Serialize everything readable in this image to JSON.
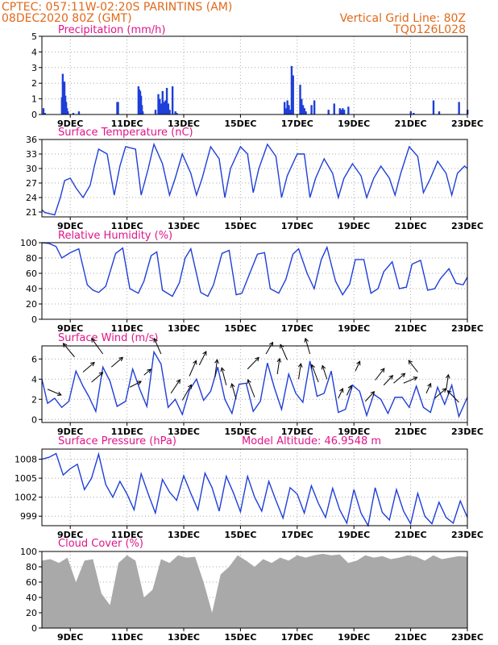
{
  "header": {
    "line1_left": "CPTEC:   057:11W-02:20S   PARINTINS (AM)",
    "line2_left": "08DEC2020 80Z (GMT)",
    "line1_right": "Vertical Grid Line: 80Z",
    "line2_right": "TQ0126L028"
  },
  "colors": {
    "header": "#e06a1c",
    "title": "#e0158a",
    "line": "#1f3fd8",
    "bar": "#1f3fd8",
    "cloud": "#a9a9a9",
    "grid": "#aaaaaa"
  },
  "x_axis": {
    "tick_labels": [
      "9DEC",
      "11DEC",
      "13DEC",
      "15DEC",
      "17DEC",
      "19DEC",
      "21DEC",
      "23DEC"
    ],
    "tick_days": [
      1,
      3,
      5,
      7,
      9,
      11,
      13,
      15
    ],
    "range_days": [
      0,
      15
    ]
  },
  "chart_data": [
    {
      "type": "bar",
      "title": "Precipitation (mm/h)",
      "ylim": [
        0,
        5
      ],
      "yticks": [
        "0",
        "1",
        "2",
        "3",
        "4",
        "5"
      ],
      "grid": true,
      "x": [
        0.05,
        0.1,
        0.7,
        0.73,
        0.76,
        0.79,
        0.82,
        0.85,
        0.88,
        0.91,
        1.1,
        1.3,
        2.65,
        2.68,
        3.4,
        3.43,
        3.46,
        3.49,
        3.52,
        3.55,
        4.0,
        4.1,
        4.15,
        4.2,
        4.25,
        4.3,
        4.35,
        4.4,
        4.45,
        4.5,
        4.6,
        4.7,
        4.75,
        8.55,
        8.6,
        8.65,
        8.7,
        8.75,
        8.8,
        8.85,
        9.1,
        9.15,
        9.2,
        9.25,
        9.3,
        9.5,
        9.6,
        10.1,
        10.3,
        10.5,
        10.55,
        10.6,
        10.65,
        10.8,
        13.0,
        13.1,
        13.8,
        14.0,
        14.7,
        15.0
      ],
      "values": [
        0.4,
        0.1,
        1.1,
        2.6,
        1.5,
        2.1,
        1.2,
        0.8,
        0.4,
        0.2,
        0.1,
        0.2,
        0.8,
        0.8,
        1.8,
        1.6,
        1.5,
        1.2,
        0.6,
        0.2,
        0.3,
        1.3,
        1.0,
        0.7,
        1.5,
        0.8,
        0.9,
        1.7,
        0.7,
        0.3,
        1.8,
        0.2,
        0.1,
        0.8,
        0.4,
        0.9,
        0.6,
        0.3,
        3.1,
        2.5,
        1.9,
        1.0,
        0.6,
        0.4,
        0.2,
        0.6,
        0.9,
        0.3,
        0.7,
        0.4,
        0.3,
        0.4,
        0.3,
        0.5,
        0.2,
        0.1,
        0.9,
        0.2,
        0.8,
        0.3
      ]
    },
    {
      "type": "line",
      "title": "Surface Temperature (nC)",
      "ylim": [
        20,
        36
      ],
      "yticks": [
        "21",
        "24",
        "27",
        "30",
        "33",
        "36"
      ],
      "ytick_values": [
        21,
        24,
        27,
        30,
        33,
        36
      ],
      "grid": true,
      "x": [
        0,
        0.1,
        0.45,
        0.65,
        0.8,
        1.0,
        1.2,
        1.45,
        1.7,
        1.85,
        2.0,
        2.3,
        2.55,
        2.75,
        2.95,
        3.3,
        3.5,
        3.75,
        3.95,
        4.25,
        4.5,
        4.7,
        4.95,
        5.25,
        5.45,
        5.65,
        5.95,
        6.25,
        6.45,
        6.65,
        7.0,
        7.25,
        7.45,
        7.65,
        7.95,
        8.25,
        8.45,
        8.65,
        9.0,
        9.25,
        9.45,
        9.65,
        9.95,
        10.25,
        10.45,
        10.65,
        10.95,
        11.25,
        11.45,
        11.7,
        11.95,
        12.25,
        12.45,
        12.65,
        12.95,
        13.25,
        13.45,
        13.7,
        13.95,
        14.25,
        14.45,
        14.65,
        14.9,
        15.0
      ],
      "values": [
        21.5,
        20.9,
        20.4,
        24.0,
        27.5,
        28.0,
        26.0,
        24.0,
        26.5,
        30.5,
        34.0,
        33.0,
        24.5,
        30.5,
        34.5,
        34.0,
        24.5,
        30.0,
        35.0,
        31.0,
        24.5,
        28.0,
        33.0,
        29.0,
        24.5,
        28.0,
        34.5,
        32.0,
        24.0,
        30.0,
        34.5,
        33.0,
        25.0,
        30.0,
        35.0,
        32.5,
        24.0,
        28.5,
        33.0,
        33.0,
        24.0,
        28.0,
        32.0,
        29.0,
        24.0,
        28.0,
        31.0,
        28.5,
        24.0,
        28.0,
        30.5,
        28.0,
        24.5,
        29.0,
        34.5,
        32.5,
        25.0,
        28.0,
        31.5,
        29.0,
        24.5,
        29.0,
        30.5,
        30.0
      ]
    },
    {
      "type": "line",
      "title": "Relative Humidity (%)",
      "ylim": [
        0,
        100
      ],
      "yticks": [
        "0",
        "20",
        "40",
        "60",
        "80",
        "100"
      ],
      "ytick_values": [
        0,
        20,
        40,
        60,
        80,
        100
      ],
      "grid": true,
      "x": [
        0,
        0.25,
        0.5,
        0.7,
        1.0,
        1.3,
        1.6,
        1.8,
        2.0,
        2.25,
        2.6,
        2.85,
        3.1,
        3.4,
        3.6,
        3.85,
        4.05,
        4.25,
        4.6,
        4.85,
        5.05,
        5.25,
        5.6,
        5.85,
        6.05,
        6.35,
        6.6,
        6.85,
        7.05,
        7.35,
        7.6,
        7.85,
        8.05,
        8.35,
        8.6,
        8.85,
        9.05,
        9.35,
        9.6,
        9.85,
        10.05,
        10.35,
        10.6,
        10.85,
        11.05,
        11.35,
        11.6,
        11.85,
        12.05,
        12.35,
        12.6,
        12.85,
        13.05,
        13.35,
        13.6,
        13.85,
        14.05,
        14.35,
        14.6,
        14.85,
        15.0
      ],
      "values": [
        100,
        99,
        95,
        80,
        87,
        92,
        45,
        38,
        35,
        43,
        86,
        93,
        40,
        34,
        50,
        83,
        88,
        38,
        30,
        48,
        80,
        92,
        35,
        30,
        45,
        86,
        90,
        32,
        34,
        62,
        85,
        87,
        40,
        34,
        52,
        85,
        92,
        60,
        40,
        78,
        94,
        50,
        32,
        46,
        78,
        78,
        34,
        40,
        62,
        75,
        40,
        42,
        72,
        77,
        38,
        40,
        53,
        66,
        47,
        45,
        55
      ]
    },
    {
      "type": "line",
      "title": "Surface Wind (m/s)",
      "ylim": [
        -0.3,
        7.3
      ],
      "yticks": [
        "0",
        "2",
        "4",
        "6"
      ],
      "ytick_values": [
        0,
        2,
        4,
        6
      ],
      "grid": true,
      "x": [
        0,
        0.2,
        0.45,
        0.7,
        0.95,
        1.2,
        1.45,
        1.65,
        1.9,
        2.15,
        2.4,
        2.65,
        2.95,
        3.2,
        3.45,
        3.7,
        3.95,
        4.2,
        4.45,
        4.7,
        4.95,
        5.2,
        5.45,
        5.7,
        5.95,
        6.2,
        6.45,
        6.7,
        6.95,
        7.2,
        7.45,
        7.7,
        7.95,
        8.2,
        8.45,
        8.7,
        8.95,
        9.2,
        9.45,
        9.7,
        9.95,
        10.2,
        10.45,
        10.7,
        10.95,
        11.2,
        11.45,
        11.7,
        11.95,
        12.2,
        12.45,
        12.7,
        12.95,
        13.2,
        13.45,
        13.7,
        13.95,
        14.2,
        14.45,
        14.7,
        15.0
      ],
      "values": [
        4.0,
        1.6,
        2.1,
        1.2,
        1.8,
        4.8,
        3.3,
        2.3,
        0.8,
        5.2,
        3.8,
        1.3,
        1.8,
        5.0,
        3.0,
        1.3,
        6.7,
        5.5,
        1.2,
        2.0,
        0.5,
        2.9,
        4.0,
        1.9,
        2.8,
        5.2,
        2.0,
        0.6,
        3.5,
        3.6,
        0.8,
        1.8,
        5.6,
        3.1,
        1.0,
        4.5,
        2.6,
        1.7,
        5.8,
        2.3,
        2.6,
        4.8,
        0.7,
        1.0,
        3.4,
        2.8,
        0.4,
        2.5,
        2.0,
        0.6,
        2.2,
        2.2,
        1.2,
        3.3,
        1.2,
        0.7,
        3.2,
        1.5,
        3.4,
        0.3,
        2.2
      ],
      "arrow_x": [
        0.2,
        1.15,
        1.45,
        1.75,
        2.15,
        2.45,
        3.1,
        3.6,
        4.2,
        4.55,
        4.95,
        5.2,
        5.55,
        6.1,
        6.5,
        6.85,
        7.25,
        7.5,
        7.9,
        8.3,
        8.65,
        9.05,
        9.45,
        9.75,
        10.05,
        10.45,
        10.75,
        11.05,
        11.4,
        11.75,
        12.05,
        12.4,
        12.75,
        13.25,
        13.55,
        13.85,
        14.25,
        14.7
      ],
      "arrow_dx": [
        0.6,
        -0.5,
        0.5,
        0.5,
        -0.5,
        0.5,
        0.5,
        0.3,
        -0.3,
        0.4,
        0.4,
        0.3,
        0.3,
        0.1,
        -0.2,
        -0.2,
        0.5,
        -0.3,
        0.3,
        0.1,
        -0.3,
        0.1,
        -0.2,
        -0.3,
        -0.2,
        0.2,
        0.2,
        0.2,
        0.4,
        0.4,
        0.4,
        0.5,
        0.6,
        -0.4,
        0.2,
        0.5,
        0.1,
        -0.5
      ],
      "arrow_dy": [
        -0.3,
        0.7,
        0.5,
        0.5,
        0.8,
        0.5,
        0.3,
        0.3,
        0.8,
        0.7,
        0.8,
        0.8,
        0.7,
        0.9,
        0.9,
        0.8,
        0.6,
        0.9,
        0.6,
        0.8,
        0.8,
        0.8,
        0.8,
        0.9,
        0.7,
        0.5,
        0.5,
        0.5,
        0.5,
        0.6,
        0.5,
        0.5,
        0.3,
        0.6,
        0.5,
        0.5,
        0.8,
        0.6
      ]
    },
    {
      "type": "line",
      "title": "Surface Pressure (hPa)",
      "annotation": "Model Altitude: 46.9548 m",
      "ylim": [
        997.5,
        1009.6
      ],
      "yticks": [
        "999",
        "1002",
        "1005",
        "1008"
      ],
      "ytick_values": [
        999,
        1002,
        1005,
        1008
      ],
      "grid": true,
      "x": [
        0,
        0.25,
        0.5,
        0.75,
        1.0,
        1.25,
        1.5,
        1.75,
        2.0,
        2.25,
        2.5,
        2.75,
        3.0,
        3.25,
        3.5,
        3.75,
        4.0,
        4.25,
        4.5,
        4.75,
        5.0,
        5.25,
        5.5,
        5.75,
        6.0,
        6.25,
        6.5,
        6.75,
        7.0,
        7.25,
        7.5,
        7.75,
        8.0,
        8.25,
        8.5,
        8.75,
        9.0,
        9.25,
        9.5,
        9.75,
        10.0,
        10.25,
        10.5,
        10.75,
        11.0,
        11.25,
        11.5,
        11.75,
        12.0,
        12.25,
        12.5,
        12.75,
        13.0,
        13.25,
        13.5,
        13.75,
        14.0,
        14.25,
        14.5,
        14.75,
        15.0
      ],
      "values": [
        1008.0,
        1008.3,
        1008.9,
        1005.5,
        1006.5,
        1007.2,
        1003.2,
        1005.0,
        1008.8,
        1004.0,
        1002.0,
        1004.5,
        1002.5,
        1000.0,
        1005.7,
        1002.5,
        999.5,
        1004.8,
        1002.8,
        1001.5,
        1005.4,
        1002.6,
        1000.0,
        1005.8,
        1003.5,
        999.8,
        1005.3,
        1002.7,
        999.7,
        1005.3,
        1002.0,
        999.8,
        1004.5,
        1001.5,
        998.7,
        1003.5,
        1002.5,
        999.5,
        1003.8,
        1001.0,
        998.8,
        1003.4,
        1000.0,
        997.9,
        1003.2,
        999.5,
        997.5,
        1003.5,
        999.6,
        998.4,
        1003.2,
        999.8,
        997.8,
        1002.6,
        999.0,
        997.8,
        1001.2,
        998.8,
        997.9,
        1001.4,
        998.8
      ]
    },
    {
      "type": "area",
      "title": "Cloud Cover (%)",
      "ylim": [
        0,
        100
      ],
      "yticks": [
        "0",
        "20",
        "40",
        "60",
        "80",
        "100"
      ],
      "ytick_values": [
        0,
        20,
        40,
        60,
        80,
        100
      ],
      "grid": true,
      "x": [
        0,
        0.3,
        0.6,
        0.9,
        1.2,
        1.5,
        1.8,
        2.1,
        2.4,
        2.7,
        3.0,
        3.3,
        3.6,
        3.9,
        4.2,
        4.5,
        4.8,
        5.1,
        5.4,
        5.7,
        6.0,
        6.3,
        6.6,
        6.9,
        7.2,
        7.5,
        7.8,
        8.1,
        8.4,
        8.7,
        9.0,
        9.3,
        9.6,
        9.9,
        10.2,
        10.5,
        10.8,
        11.1,
        11.4,
        11.7,
        12.0,
        12.3,
        12.6,
        12.9,
        13.2,
        13.5,
        13.8,
        14.1,
        14.4,
        14.7,
        15.0
      ],
      "values": [
        88,
        90,
        85,
        92,
        60,
        88,
        90,
        45,
        30,
        85,
        95,
        88,
        40,
        50,
        90,
        85,
        95,
        92,
        93,
        60,
        20,
        70,
        80,
        95,
        88,
        80,
        90,
        85,
        92,
        88,
        95,
        92,
        95,
        97,
        95,
        96,
        85,
        88,
        95,
        92,
        94,
        90,
        92,
        95,
        93,
        88,
        95,
        90,
        92,
        94,
        93
      ]
    }
  ]
}
